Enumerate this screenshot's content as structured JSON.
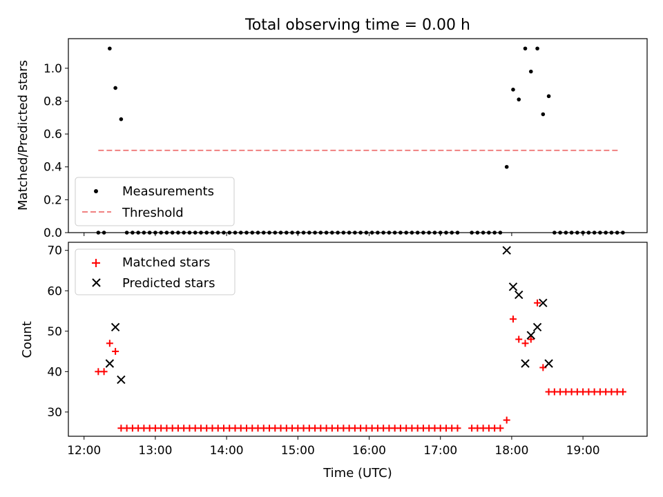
{
  "figure": {
    "title": "Total observing time = 0.00 h",
    "xlabel": "Time (UTC)"
  },
  "chart_data": [
    {
      "type": "scatter",
      "ylabel": "Matched/Predicted stars",
      "ylim": [
        0,
        1.18
      ],
      "yticks": [
        0.0,
        0.2,
        0.4,
        0.6,
        0.8,
        1.0
      ],
      "xlim": [
        11.78,
        19.9
      ],
      "xticks": [
        "12:00",
        "13:00",
        "14:00",
        "15:00",
        "16:00",
        "17:00",
        "18:00",
        "19:00"
      ],
      "show_xtick_labels": false,
      "legend": {
        "position": "lower-left",
        "entries": [
          "Measurements",
          "Threshold"
        ]
      },
      "series": [
        {
          "name": "Measurements",
          "marker": "dot",
          "color": "#000000",
          "x": [
            12.2,
            12.28,
            12.36,
            12.44,
            12.52,
            12.6,
            12.68,
            12.76,
            12.84,
            12.92,
            13.0,
            13.08,
            13.16,
            13.24,
            13.32,
            13.4,
            13.48,
            13.56,
            13.64,
            13.72,
            13.8,
            13.88,
            13.96,
            14.04,
            14.12,
            14.2,
            14.28,
            14.36,
            14.44,
            14.52,
            14.6,
            14.68,
            14.76,
            14.84,
            14.92,
            15.0,
            15.08,
            15.16,
            15.24,
            15.32,
            15.4,
            15.48,
            15.56,
            15.64,
            15.72,
            15.8,
            15.88,
            15.96,
            16.04,
            16.12,
            16.2,
            16.28,
            16.36,
            16.44,
            16.52,
            16.6,
            16.68,
            16.76,
            16.84,
            16.92,
            17.0,
            17.08,
            17.16,
            17.24,
            17.44,
            17.52,
            17.6,
            17.68,
            17.76,
            17.84,
            17.93,
            18.02,
            18.1,
            18.19,
            18.27,
            18.36,
            18.44,
            18.52,
            18.6,
            18.68,
            18.76,
            18.84,
            18.92,
            19.0,
            19.08,
            19.16,
            19.24,
            19.32,
            19.4,
            19.48,
            19.56
          ],
          "y": [
            0,
            0,
            1.12,
            0.88,
            0.69,
            0,
            0,
            0,
            0,
            0,
            0,
            0,
            0,
            0,
            0,
            0,
            0,
            0,
            0,
            0,
            0,
            0,
            0,
            0,
            0,
            0,
            0,
            0,
            0,
            0,
            0,
            0,
            0,
            0,
            0,
            0,
            0,
            0,
            0,
            0,
            0,
            0,
            0,
            0,
            0,
            0,
            0,
            0,
            0,
            0,
            0,
            0,
            0,
            0,
            0,
            0,
            0,
            0,
            0,
            0,
            0,
            0,
            0,
            0,
            0,
            0,
            0,
            0,
            0,
            0,
            0.4,
            0.87,
            0.81,
            1.12,
            0.98,
            1.12,
            0.72,
            0.83,
            0,
            0,
            0,
            0,
            0,
            0,
            0,
            0,
            0,
            0,
            0,
            0,
            0
          ]
        },
        {
          "name": "Threshold",
          "marker": "dashed-line",
          "color": "#f08080",
          "x": [
            12.2,
            19.5
          ],
          "y": [
            0.5,
            0.5
          ]
        }
      ]
    },
    {
      "type": "scatter",
      "ylabel": "Count",
      "ylim": [
        24,
        72
      ],
      "yticks": [
        30,
        40,
        50,
        60,
        70
      ],
      "xlim": [
        11.78,
        19.9
      ],
      "xticks": [
        "12:00",
        "13:00",
        "14:00",
        "15:00",
        "16:00",
        "17:00",
        "18:00",
        "19:00"
      ],
      "show_xtick_labels": true,
      "legend": {
        "position": "upper-left",
        "entries": [
          "Matched stars",
          "Predicted stars"
        ]
      },
      "series": [
        {
          "name": "Matched stars",
          "marker": "plus",
          "color": "#ff0000",
          "x": [
            12.2,
            12.28,
            12.36,
            12.44,
            12.52,
            12.6,
            12.68,
            12.76,
            12.84,
            12.92,
            13.0,
            13.08,
            13.16,
            13.24,
            13.32,
            13.4,
            13.48,
            13.56,
            13.64,
            13.72,
            13.8,
            13.88,
            13.96,
            14.04,
            14.12,
            14.2,
            14.28,
            14.36,
            14.44,
            14.52,
            14.6,
            14.68,
            14.76,
            14.84,
            14.92,
            15.0,
            15.08,
            15.16,
            15.24,
            15.32,
            15.4,
            15.48,
            15.56,
            15.64,
            15.72,
            15.8,
            15.88,
            15.96,
            16.04,
            16.12,
            16.2,
            16.28,
            16.36,
            16.44,
            16.52,
            16.6,
            16.68,
            16.76,
            16.84,
            16.92,
            17.0,
            17.08,
            17.16,
            17.24,
            17.44,
            17.52,
            17.6,
            17.68,
            17.76,
            17.84,
            17.93,
            18.02,
            18.1,
            18.19,
            18.27,
            18.36,
            18.44,
            18.52,
            18.6,
            18.68,
            18.76,
            18.84,
            18.92,
            19.0,
            19.08,
            19.16,
            19.24,
            19.32,
            19.4,
            19.48,
            19.56
          ],
          "y": [
            40,
            40,
            47,
            45,
            26,
            26,
            26,
            26,
            26,
            26,
            26,
            26,
            26,
            26,
            26,
            26,
            26,
            26,
            26,
            26,
            26,
            26,
            26,
            26,
            26,
            26,
            26,
            26,
            26,
            26,
            26,
            26,
            26,
            26,
            26,
            26,
            26,
            26,
            26,
            26,
            26,
            26,
            26,
            26,
            26,
            26,
            26,
            26,
            26,
            26,
            26,
            26,
            26,
            26,
            26,
            26,
            26,
            26,
            26,
            26,
            26,
            26,
            26,
            26,
            26,
            26,
            26,
            26,
            26,
            26,
            28,
            53,
            48,
            47,
            48,
            57,
            41,
            35,
            35,
            35,
            35,
            35,
            35,
            35,
            35,
            35,
            35,
            35,
            35,
            35,
            35
          ]
        },
        {
          "name": "Predicted stars",
          "marker": "x",
          "color": "#000000",
          "x": [
            12.36,
            12.44,
            12.52,
            17.93,
            18.02,
            18.1,
            18.19,
            18.27,
            18.36,
            18.44,
            18.52
          ],
          "y": [
            42,
            51,
            38,
            70,
            61,
            59,
            42,
            49,
            51,
            57,
            42
          ]
        }
      ]
    }
  ]
}
